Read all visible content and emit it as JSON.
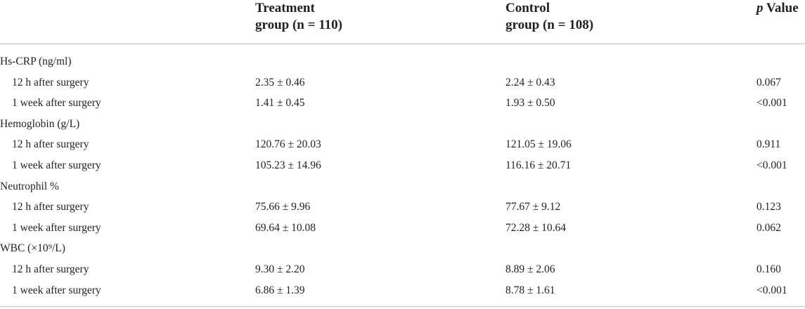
{
  "header": {
    "treatment_line1": "Treatment",
    "treatment_line2": "group (n = 110)",
    "control_line1": "Control",
    "control_line2": "group (n = 108)",
    "p_italic": "p",
    "p_rest": " Value"
  },
  "rows": [
    {
      "label": "Hs-CRP (ng/ml)",
      "treatment": "",
      "control": "",
      "p": ""
    },
    {
      "label": "12 h after surgery",
      "treatment": "2.35 ± 0.46",
      "control": "2.24 ± 0.43",
      "p": "0.067"
    },
    {
      "label": "1 week after surgery",
      "treatment": "1.41 ± 0.45",
      "control": "1.93 ± 0.50",
      "p": "<0.001"
    },
    {
      "label": "Hemoglobin (g/L)",
      "treatment": "",
      "control": "",
      "p": ""
    },
    {
      "label": "12 h after surgery",
      "treatment": "120.76 ± 20.03",
      "control": "121.05 ± 19.06",
      "p": "0.911"
    },
    {
      "label": "1 week after surgery",
      "treatment": "105.23 ± 14.96",
      "control": "116.16 ± 20.71",
      "p": "<0.001"
    },
    {
      "label": "Neutrophil %",
      "treatment": "",
      "control": "",
      "p": ""
    },
    {
      "label": "12 h after surgery",
      "treatment": "75.66 ± 9.96",
      "control": "77.67 ± 9.12",
      "p": "0.123"
    },
    {
      "label": "1 week after surgery",
      "treatment": "69.64 ± 10.08",
      "control": "72.28 ± 10.64",
      "p": "0.062"
    },
    {
      "label": "WBC (×10⁹/L)",
      "treatment": "",
      "control": "",
      "p": ""
    },
    {
      "label": "12 h after surgery",
      "treatment": "9.30 ± 2.20",
      "control": "8.89 ± 2.06",
      "p": "0.160"
    },
    {
      "label": "1 week after surgery",
      "treatment": "6.86 ± 1.39",
      "control": "8.78 ± 1.61",
      "p": "<0.001"
    }
  ]
}
